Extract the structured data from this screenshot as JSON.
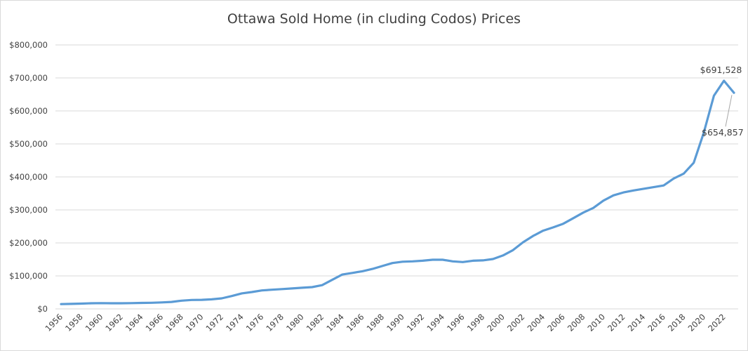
{
  "chart_data": {
    "type": "line",
    "title": "Ottawa Sold Home (in cluding Codos) Prices",
    "xlabel": "",
    "ylabel": "",
    "ylim": [
      0,
      800000
    ],
    "yticks": [
      0,
      100000,
      200000,
      300000,
      400000,
      500000,
      600000,
      700000,
      800000
    ],
    "ytick_labels": [
      "$0",
      "$100,000",
      "$200,000",
      "$300,000",
      "$400,000",
      "$500,000",
      "$600,000",
      "$700,000",
      "$800,000"
    ],
    "xtick_labels": [
      "1956",
      "1958",
      "1960",
      "1962",
      "1964",
      "1966",
      "1968",
      "1970",
      "1972",
      "1974",
      "1976",
      "1978",
      "1980",
      "1982",
      "1984",
      "1986",
      "1988",
      "1990",
      "1992",
      "1994",
      "1996",
      "1998",
      "2000",
      "2002",
      "2004",
      "2006",
      "2008",
      "2010",
      "2012",
      "2014",
      "2016",
      "2018",
      "2020",
      "2022"
    ],
    "grid": true,
    "legend": "none",
    "color": "#5b9bd5",
    "x": [
      1956,
      1957,
      1958,
      1959,
      1960,
      1961,
      1962,
      1963,
      1964,
      1965,
      1966,
      1967,
      1968,
      1969,
      1970,
      1971,
      1972,
      1973,
      1974,
      1975,
      1976,
      1977,
      1978,
      1979,
      1980,
      1981,
      1982,
      1983,
      1984,
      1985,
      1986,
      1987,
      1988,
      1989,
      1990,
      1991,
      1992,
      1993,
      1994,
      1995,
      1996,
      1997,
      1998,
      1999,
      2000,
      2001,
      2002,
      2003,
      2004,
      2005,
      2006,
      2007,
      2008,
      2009,
      2010,
      2011,
      2012,
      2013,
      2014,
      2015,
      2016,
      2017,
      2018,
      2019,
      2020,
      2021,
      2022,
      2023
    ],
    "y": [
      14500,
      15000,
      16000,
      17000,
      17500,
      17000,
      17000,
      17500,
      18000,
      18500,
      19500,
      21000,
      25000,
      27000,
      27500,
      29000,
      32000,
      39000,
      47000,
      51000,
      56000,
      58000,
      60000,
      62000,
      64000,
      66000,
      72000,
      88000,
      104000,
      109000,
      114000,
      121000,
      130000,
      139000,
      143000,
      144000,
      146000,
      149000,
      149000,
      144000,
      142000,
      146000,
      147000,
      151000,
      162000,
      178000,
      202000,
      221000,
      237000,
      247000,
      258000,
      275000,
      292000,
      306000,
      328000,
      344000,
      353000,
      359000,
      364000,
      369000,
      374000,
      395000,
      410000,
      443000,
      535000,
      646000,
      691528,
      654857
    ],
    "annotations": [
      {
        "x": 2022,
        "label": "$691,528"
      },
      {
        "x": 2023,
        "label": "$654,857"
      }
    ]
  }
}
